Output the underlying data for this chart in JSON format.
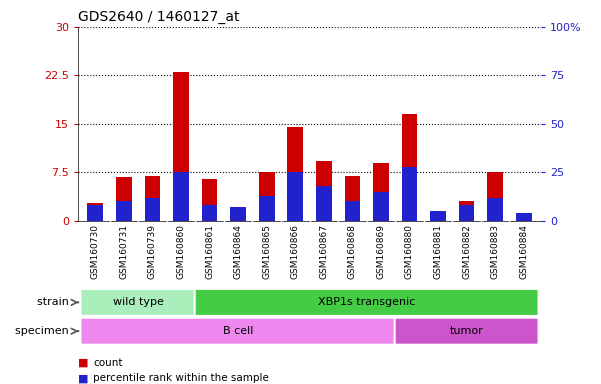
{
  "title": "GDS2640 / 1460127_at",
  "samples": [
    "GSM160730",
    "GSM160731",
    "GSM160739",
    "GSM160860",
    "GSM160861",
    "GSM160864",
    "GSM160865",
    "GSM160866",
    "GSM160867",
    "GSM160868",
    "GSM160869",
    "GSM160880",
    "GSM160881",
    "GSM160882",
    "GSM160883",
    "GSM160884"
  ],
  "count": [
    2.7,
    6.8,
    7.0,
    23.0,
    6.5,
    2.2,
    7.5,
    14.5,
    9.2,
    7.0,
    9.0,
    16.5,
    1.5,
    3.0,
    7.5,
    1.0
  ],
  "percentile": [
    8,
    10,
    12,
    25,
    8,
    7,
    13,
    25,
    18,
    10,
    15,
    28,
    5,
    8,
    12,
    4
  ],
  "ylim_left": [
    0,
    30
  ],
  "ylim_right": [
    0,
    100
  ],
  "yticks_left": [
    0,
    7.5,
    15,
    22.5,
    30
  ],
  "yticks_right": [
    0,
    25,
    50,
    75,
    100
  ],
  "ytick_labels_left": [
    "0",
    "7.5",
    "15",
    "22.5",
    "30"
  ],
  "ytick_labels_right": [
    "0",
    "25",
    "50",
    "75",
    "100%"
  ],
  "bar_color_count": "#cc0000",
  "bar_color_pct": "#2222cc",
  "bar_width": 0.55,
  "strain_groups": [
    {
      "label": "wild type",
      "start": 0,
      "end": 4,
      "color": "#aaeebb"
    },
    {
      "label": "XBP1s transgenic",
      "start": 4,
      "end": 16,
      "color": "#44cc44"
    }
  ],
  "specimen_groups": [
    {
      "label": "B cell",
      "start": 0,
      "end": 11,
      "color": "#ee88ee"
    },
    {
      "label": "tumor",
      "start": 11,
      "end": 16,
      "color": "#cc55cc"
    }
  ],
  "strain_label": "strain",
  "specimen_label": "specimen",
  "legend_count": "count",
  "legend_pct": "percentile rank within the sample",
  "plot_bg_color": "#ffffff",
  "xtick_bg_color": "#cccccc",
  "left_tick_color": "#cc0000",
  "right_tick_color": "#2222cc",
  "grid_color": "#000000"
}
